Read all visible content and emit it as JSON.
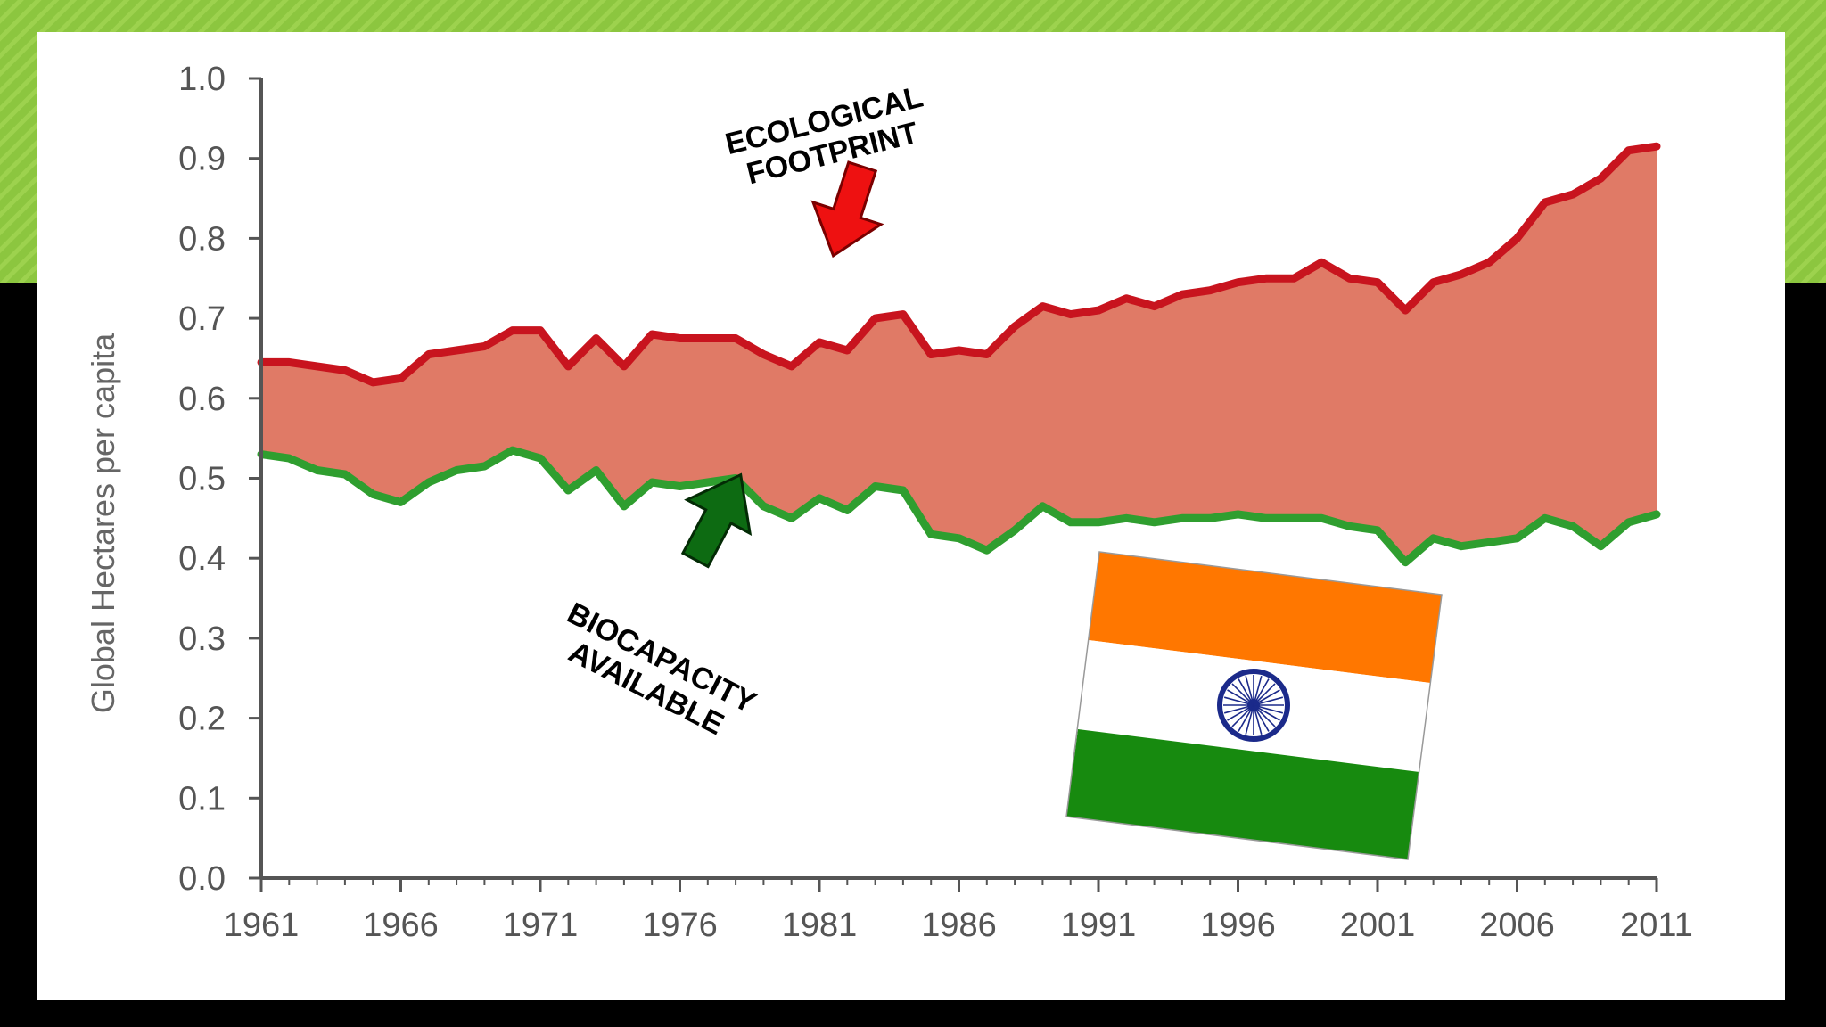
{
  "colors": {
    "slide_accent": "#8cc63f",
    "slide_background": "#000000",
    "card_background": "#ffffff",
    "footprint_line": "#c8141e",
    "biocapacity_line": "#2f9e2f",
    "deficit_fill": "#e07a66",
    "axis": "#555555",
    "arrow_red": "#ee1111",
    "arrow_green": "#0d6b12",
    "flag_saffron": "#ff7700",
    "flag_white": "#ffffff",
    "flag_green": "#178a0f",
    "flag_chakra": "#1b2a8a"
  },
  "icons": [
    "india-flag-icon",
    "red-down-arrow-icon",
    "green-up-arrow-icon"
  ],
  "chart_data": {
    "type": "area",
    "title": "",
    "xlabel": "",
    "ylabel": "Global Hectares per capita",
    "xlim": [
      1961,
      2011
    ],
    "ylim": [
      0.0,
      1.0
    ],
    "x_ticks": [
      "1961",
      "1966",
      "1971",
      "1976",
      "1981",
      "1986",
      "1991",
      "1996",
      "2001",
      "2006",
      "2011"
    ],
    "y_ticks": [
      "0.0",
      "0.1",
      "0.2",
      "0.3",
      "0.4",
      "0.5",
      "0.6",
      "0.7",
      "0.8",
      "0.9",
      "1.0"
    ],
    "grid": false,
    "x": [
      1961,
      1962,
      1963,
      1964,
      1965,
      1966,
      1967,
      1968,
      1969,
      1970,
      1971,
      1972,
      1973,
      1974,
      1975,
      1976,
      1977,
      1978,
      1979,
      1980,
      1981,
      1982,
      1983,
      1984,
      1985,
      1986,
      1987,
      1988,
      1989,
      1990,
      1991,
      1992,
      1993,
      1994,
      1995,
      1996,
      1997,
      1998,
      1999,
      2000,
      2001,
      2002,
      2003,
      2004,
      2005,
      2006,
      2007,
      2008,
      2009,
      2010,
      2011
    ],
    "series": [
      {
        "values": [
          0.645,
          0.645,
          0.64,
          0.635,
          0.62,
          0.625,
          0.655,
          0.66,
          0.665,
          0.685,
          0.685,
          0.64,
          0.675,
          0.64,
          0.68,
          0.675,
          0.675,
          0.675,
          0.655,
          0.64,
          0.67,
          0.66,
          0.7,
          0.705,
          0.655,
          0.66,
          0.655,
          0.69,
          0.715,
          0.705,
          0.71,
          0.725,
          0.715,
          0.73,
          0.735,
          0.745,
          0.75,
          0.75,
          0.77,
          0.75,
          0.745,
          0.71,
          0.745,
          0.755,
          0.77,
          0.8,
          0.845,
          0.855,
          0.875,
          0.91,
          0.915
        ]
      },
      {
        "values": [
          0.53,
          0.525,
          0.51,
          0.505,
          0.48,
          0.47,
          0.495,
          0.51,
          0.515,
          0.535,
          0.525,
          0.485,
          0.51,
          0.465,
          0.495,
          0.49,
          0.495,
          0.5,
          0.465,
          0.45,
          0.475,
          0.46,
          0.49,
          0.485,
          0.43,
          0.425,
          0.41,
          0.435,
          0.465,
          0.445,
          0.445,
          0.45,
          0.445,
          0.45,
          0.45,
          0.455,
          0.45,
          0.45,
          0.45,
          0.44,
          0.435,
          0.395,
          0.425,
          0.415,
          0.42,
          0.425,
          0.45,
          0.44,
          0.415,
          0.445,
          0.455
        ]
      }
    ],
    "annotations": [
      {
        "text_lines": [
          "ECOLOGICAL",
          "FOOTPRINT"
        ]
      },
      {
        "text_lines": [
          "BIOCAPACITY",
          "AVAILABLE"
        ]
      }
    ]
  }
}
